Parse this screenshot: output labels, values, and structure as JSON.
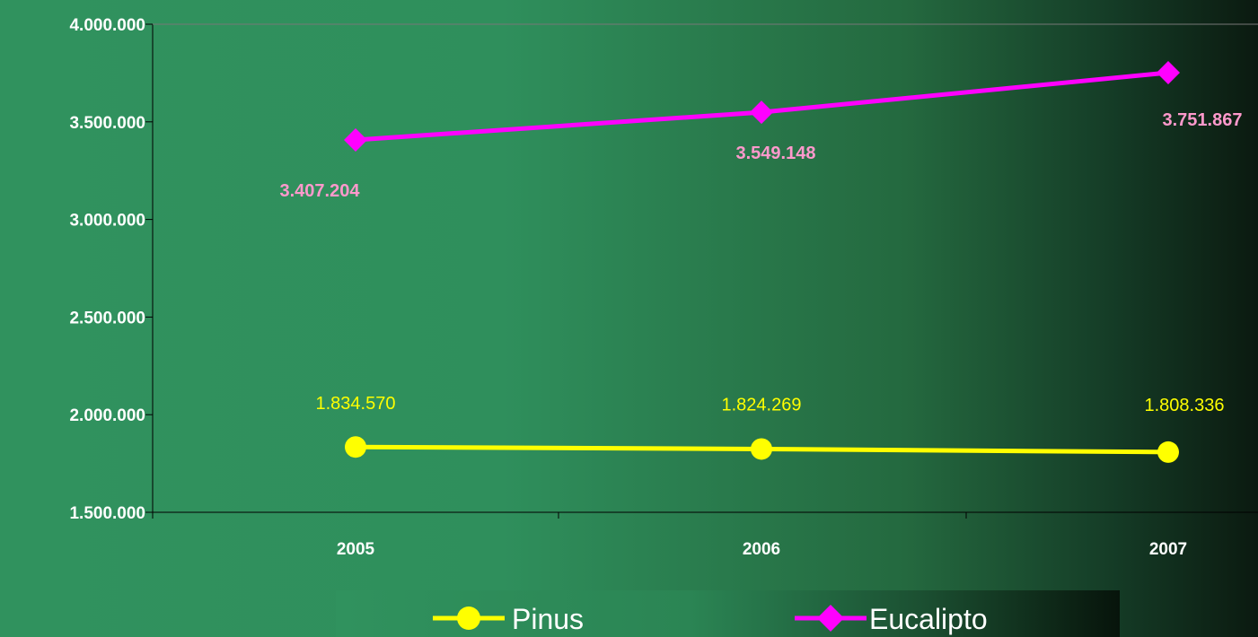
{
  "chart_data": {
    "type": "line",
    "categories": [
      "2005",
      "2006",
      "2007"
    ],
    "series": [
      {
        "name": "Pinus",
        "values": [
          1834570,
          1824269,
          1808336
        ],
        "labels": [
          "1.834.570",
          "1.824.269",
          "1.808.336"
        ],
        "color": "#ffff00",
        "marker": "circle",
        "label_bold": false
      },
      {
        "name": "Eucalipto",
        "values": [
          3407204,
          3549148,
          3751867
        ],
        "labels": [
          "3.407.204",
          "3.549.148",
          "3.751.867"
        ],
        "color": "#ff00ff",
        "label_color": "#ff99cc",
        "marker": "diamond",
        "label_bold": true
      }
    ],
    "ylim": [
      1500000,
      4000000
    ],
    "yticks": [
      1500000,
      2000000,
      2500000,
      3000000,
      3500000,
      4000000
    ],
    "ytick_labels": [
      "1.500.000",
      "2.000.000",
      "2.500.000",
      "3.000.000",
      "3.500.000",
      "4.000.000"
    ],
    "title": "",
    "xlabel": "",
    "ylabel": "",
    "grid": false,
    "legend_position": "bottom"
  }
}
